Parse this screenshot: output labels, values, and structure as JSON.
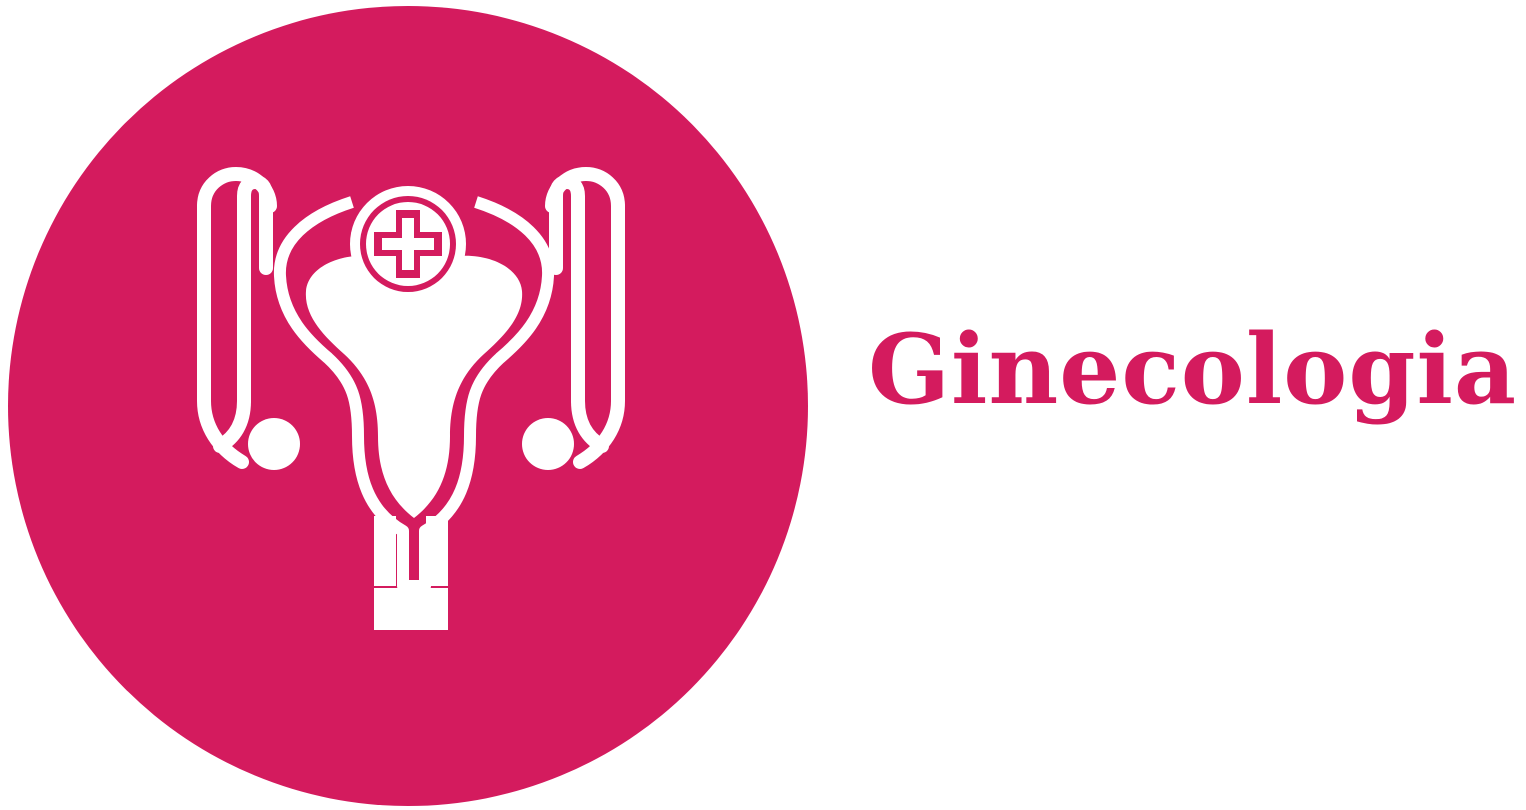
{
  "logo": {
    "title": "Ginecologia",
    "icon": "uterus-medical-cross-icon",
    "colors": {
      "brand": "#d41b5e",
      "icon": "#ffffff",
      "background": "#ffffff"
    }
  }
}
